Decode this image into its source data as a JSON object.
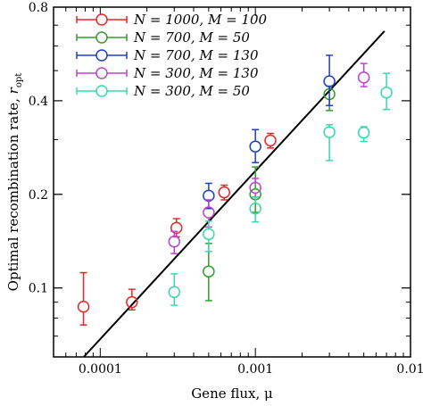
{
  "chart_data": {
    "type": "scatter",
    "xlabel": "Gene flux, μ",
    "ylabel": "Optimal recombination rate, r_opt",
    "xscale": "log",
    "yscale": "log",
    "xlim": [
      5e-05,
      0.01
    ],
    "ylim": [
      0.06,
      0.8
    ],
    "x_ticks": [
      {
        "value": 0.0001,
        "label": "0.0001"
      },
      {
        "value": 0.001,
        "label": "0.001"
      },
      {
        "value": 0.01,
        "label": "0.01"
      }
    ],
    "y_ticks": [
      {
        "value": 0.1,
        "label": "0.1"
      },
      {
        "value": 0.2,
        "label": "0.2"
      },
      {
        "value": 0.4,
        "label": "0.4"
      },
      {
        "value": 0.8,
        "label": "0.8"
      }
    ],
    "legend_position": "top-left",
    "grid": false,
    "fit_line": {
      "x": [
        7.83e-05,
        0.0068
      ],
      "y": [
        0.06,
        0.67
      ]
    },
    "series": [
      {
        "name": "N = 1000, M = 100",
        "color": "#e8262a",
        "points": [
          {
            "x": 7.8e-05,
            "y": 0.087,
            "lo": 0.076,
            "hi": 0.112
          },
          {
            "x": 0.00016,
            "y": 0.09,
            "lo": 0.085,
            "hi": 0.099
          },
          {
            "x": 0.00031,
            "y": 0.156,
            "lo": 0.146,
            "hi": 0.167
          },
          {
            "x": 0.00063,
            "y": 0.203,
            "lo": 0.192,
            "hi": 0.214
          },
          {
            "x": 0.00125,
            "y": 0.298,
            "lo": 0.282,
            "hi": 0.314
          }
        ]
      },
      {
        "name": "N = 700, M = 50",
        "color": "#2ea02c",
        "points": [
          {
            "x": 0.0005,
            "y": 0.113,
            "lo": 0.091,
            "hi": 0.139
          },
          {
            "x": 0.001,
            "y": 0.2,
            "lo": 0.175,
            "hi": 0.245
          },
          {
            "x": 0.003,
            "y": 0.42,
            "lo": 0.372,
            "hi": 0.446
          }
        ]
      },
      {
        "name": "N = 700, M = 130",
        "color": "#1f3fbf",
        "points": [
          {
            "x": 0.0005,
            "y": 0.198,
            "lo": 0.18,
            "hi": 0.217
          },
          {
            "x": 0.001,
            "y": 0.285,
            "lo": 0.253,
            "hi": 0.323
          },
          {
            "x": 0.003,
            "y": 0.462,
            "lo": 0.386,
            "hi": 0.56
          }
        ]
      },
      {
        "name": "N = 300, M = 130",
        "color": "#c040d0",
        "points": [
          {
            "x": 0.0003,
            "y": 0.141,
            "lo": 0.129,
            "hi": 0.152
          },
          {
            "x": 0.0005,
            "y": 0.175,
            "lo": 0.157,
            "hi": 0.192
          },
          {
            "x": 0.001,
            "y": 0.21,
            "lo": 0.196,
            "hi": 0.225
          },
          {
            "x": 0.005,
            "y": 0.475,
            "lo": 0.444,
            "hi": 0.527
          }
        ]
      },
      {
        "name": "N = 300, M = 50",
        "color": "#3cd6b0",
        "points": [
          {
            "x": 0.0003,
            "y": 0.097,
            "lo": 0.088,
            "hi": 0.111
          },
          {
            "x": 0.0005,
            "y": 0.149,
            "lo": 0.131,
            "hi": 0.164
          },
          {
            "x": 0.001,
            "y": 0.18,
            "lo": 0.163,
            "hi": 0.196
          },
          {
            "x": 0.003,
            "y": 0.317,
            "lo": 0.257,
            "hi": 0.335
          },
          {
            "x": 0.005,
            "y": 0.316,
            "lo": 0.296,
            "hi": 0.33
          },
          {
            "x": 0.007,
            "y": 0.425,
            "lo": 0.375,
            "hi": 0.49
          }
        ]
      }
    ]
  }
}
